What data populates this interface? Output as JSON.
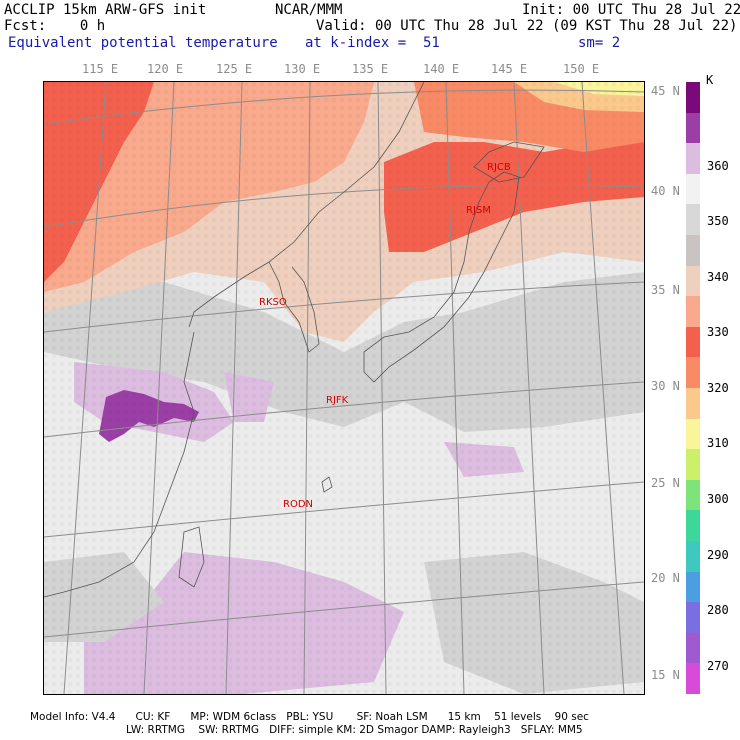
{
  "header": {
    "line1_left": "ACCLIP 15km ARW-GFS init",
    "line1_center": "NCAR/MMM",
    "line1_right": "Init: 00 UTC Thu 28 Jul 22",
    "line2_left": "Fcst:    0 h",
    "line2_right": "Valid: 00 UTC Thu 28 Jul 22 (09 KST Thu 28 Jul 22)",
    "line3_left": "Equivalent potential temperature",
    "line3_center": "at k-index =  51",
    "line3_right": "sm= 2"
  },
  "map": {
    "longitude_labels": [
      "115 E",
      "120 E",
      "125 E",
      "130 E",
      "135 E",
      "140 E",
      "145 E",
      "150 E"
    ],
    "latitude_labels": [
      "45 N",
      "40 N",
      "35 N",
      "30 N",
      "25 N",
      "20 N",
      "15 N"
    ],
    "stations": [
      {
        "id": "RJCB",
        "label": "RJCB"
      },
      {
        "id": "RJSM",
        "label": "RJSM"
      },
      {
        "id": "RKSO",
        "label": "RKSO"
      },
      {
        "id": "RJFK",
        "label": "RJFK"
      },
      {
        "id": "RODN",
        "label": "RODN"
      }
    ]
  },
  "colorbar": {
    "unit": "K",
    "tick_labels": [
      "360",
      "350",
      "340",
      "330",
      "320",
      "310",
      "300",
      "290",
      "280",
      "270"
    ],
    "colors_top_to_bottom": [
      "#7a0a7a",
      "#9b3fa6",
      "#dcbde0",
      "#f2f2f2",
      "#d8d8d8",
      "#c9c4c2",
      "#efcfbd",
      "#f9a98c",
      "#f4604e",
      "#f98a66",
      "#fcc98c",
      "#faf59a",
      "#cdf06a",
      "#7ee37a",
      "#3ed79a",
      "#3ec9c0",
      "#4d9ee0",
      "#7a6ee0",
      "#a05ad0",
      "#d84bd8"
    ]
  },
  "footer": {
    "line1": "Model Info: V4.4      CU: KF      MP: WDM 6class   PBL: YSU       SF: Noah LSM      15 km    51 levels    90 sec",
    "line2": "LW: RRTMG    SW: RRTMG   DIFF: simple KM: 2D Smagor DAMP: Rayleigh3   SFLAY: MM5"
  }
}
